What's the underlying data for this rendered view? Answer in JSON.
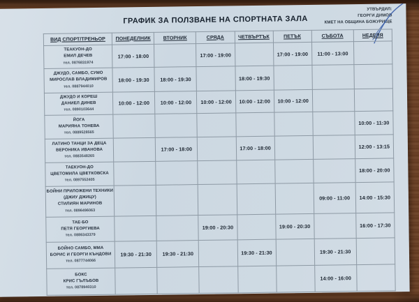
{
  "approval": {
    "line1": "УТВЪРДИЛ:",
    "line2": "ГЕОРГИ ДИМОВ",
    "line3": "КМЕТ НА ОБЩИНА БОЖУРИЩЕ"
  },
  "title": "ГРАФИК ЗА ПОЛЗВАНЕ НА СПОРТНАТА ЗАЛА",
  "table": {
    "columns": [
      "ВИД СПОРТ/ТРЕНЬОР",
      "ПОНЕДЕЛНИК",
      "ВТОРНИК",
      "СРЯДА",
      "ЧЕТВЪРТЪК",
      "ПЕТЪК",
      "СЪБОТА",
      "НЕДЕЛЯ"
    ],
    "rows": [
      {
        "sport_lines": [
          "ТЕАКУОН-ДО",
          "ЕМИЛ ДЕЧЕВ"
        ],
        "phone": "тел. 0876831974",
        "times": [
          "17:00 - 18:00",
          "",
          "17:00 - 19:00",
          "",
          "17:00 - 19:00",
          "11:00 - 13:00",
          ""
        ]
      },
      {
        "sport_lines": [
          "ДЖУДО, САМБО, СУМО",
          "МИРОСЛАВ ВЛАДИМИРОВ"
        ],
        "phone": "тел. 0887944010",
        "times": [
          "18:00 - 19:30",
          "18:00 - 19:30",
          "",
          "18:00 - 19:30",
          "",
          "",
          ""
        ]
      },
      {
        "sport_lines": [
          "ДЖУДО И КОРЕШ",
          "ДАНИЕЛ ДИНЕВ"
        ],
        "phone": "тел. 0890103644",
        "times": [
          "10:00 - 12:00",
          "10:00 - 12:00",
          "10:00 - 12:00",
          "10:00 - 12:00",
          "10:00 - 12:00",
          "",
          ""
        ]
      },
      {
        "sport_lines": [
          "ЙОГА",
          "МАРИЯНА ТОНЕВА"
        ],
        "phone": "тел. 0889528565",
        "times": [
          "",
          "",
          "",
          "",
          "",
          "",
          "10:00 - 11:30"
        ]
      },
      {
        "sport_lines": [
          "ЛАТИНО ТАНЦИ ЗА ДЕЦА",
          "ВЕРОНИКА ИВАНОВА"
        ],
        "phone": "тел. 0883548265",
        "times": [
          "",
          "17:00 - 18:00",
          "",
          "17:00 - 18:00",
          "",
          "",
          "12:00 - 13:15"
        ]
      },
      {
        "sport_lines": [
          "ТАЕКУОН-ДО",
          "ЦВЕТОМИЛА ЦВЕТКОВСКА"
        ],
        "phone": "тел. 0897552405",
        "times": [
          "",
          "",
          "",
          "",
          "",
          "",
          "18:00 - 20:00"
        ]
      },
      {
        "sport_lines": [
          "БОЙНИ ПРИЛОЖЕНИ ТЕХНИКИ",
          "(ДЖИУ ДЖИЦУ)",
          "СТИЛИЯН МАРИНОВ"
        ],
        "phone": "тел. 0896496063",
        "times": [
          "",
          "",
          "",
          "",
          "",
          "09:00 - 11:00",
          "14:00 - 15:30"
        ]
      },
      {
        "sport_lines": [
          "ТАЕ-БО",
          "ПЕТЯ ГЕОРГИЕВА"
        ],
        "phone": "тел. 0886343379",
        "times": [
          "",
          "",
          "19:00 - 20:30",
          "",
          "19:00 - 20:30",
          "",
          "16:00 - 17:30"
        ]
      },
      {
        "sport_lines": [
          "БОЙНО САМБО, ММА",
          "БОРИС И ГЕОРГИ КЪНДОВИ"
        ],
        "phone": "тел. 0877744066",
        "times": [
          "19:30 - 21:30",
          "19:30 - 21:30",
          "",
          "19:30 - 21:30",
          "",
          "19:30 - 21:30",
          ""
        ]
      },
      {
        "sport_lines": [
          "БОКС",
          "КРИС ГЪЛЪБОВ"
        ],
        "phone": "тел. 0878940310",
        "times": [
          "",
          "",
          "",
          "",
          "",
          "14:00 - 16:00",
          ""
        ]
      }
    ]
  },
  "signature": {
    "ink_color": "#2f55a4"
  },
  "colors": {
    "paper": "#cfdae3",
    "ink": "#1a232e",
    "wood": "#7c4a2b",
    "grid": "#8d99a4"
  }
}
